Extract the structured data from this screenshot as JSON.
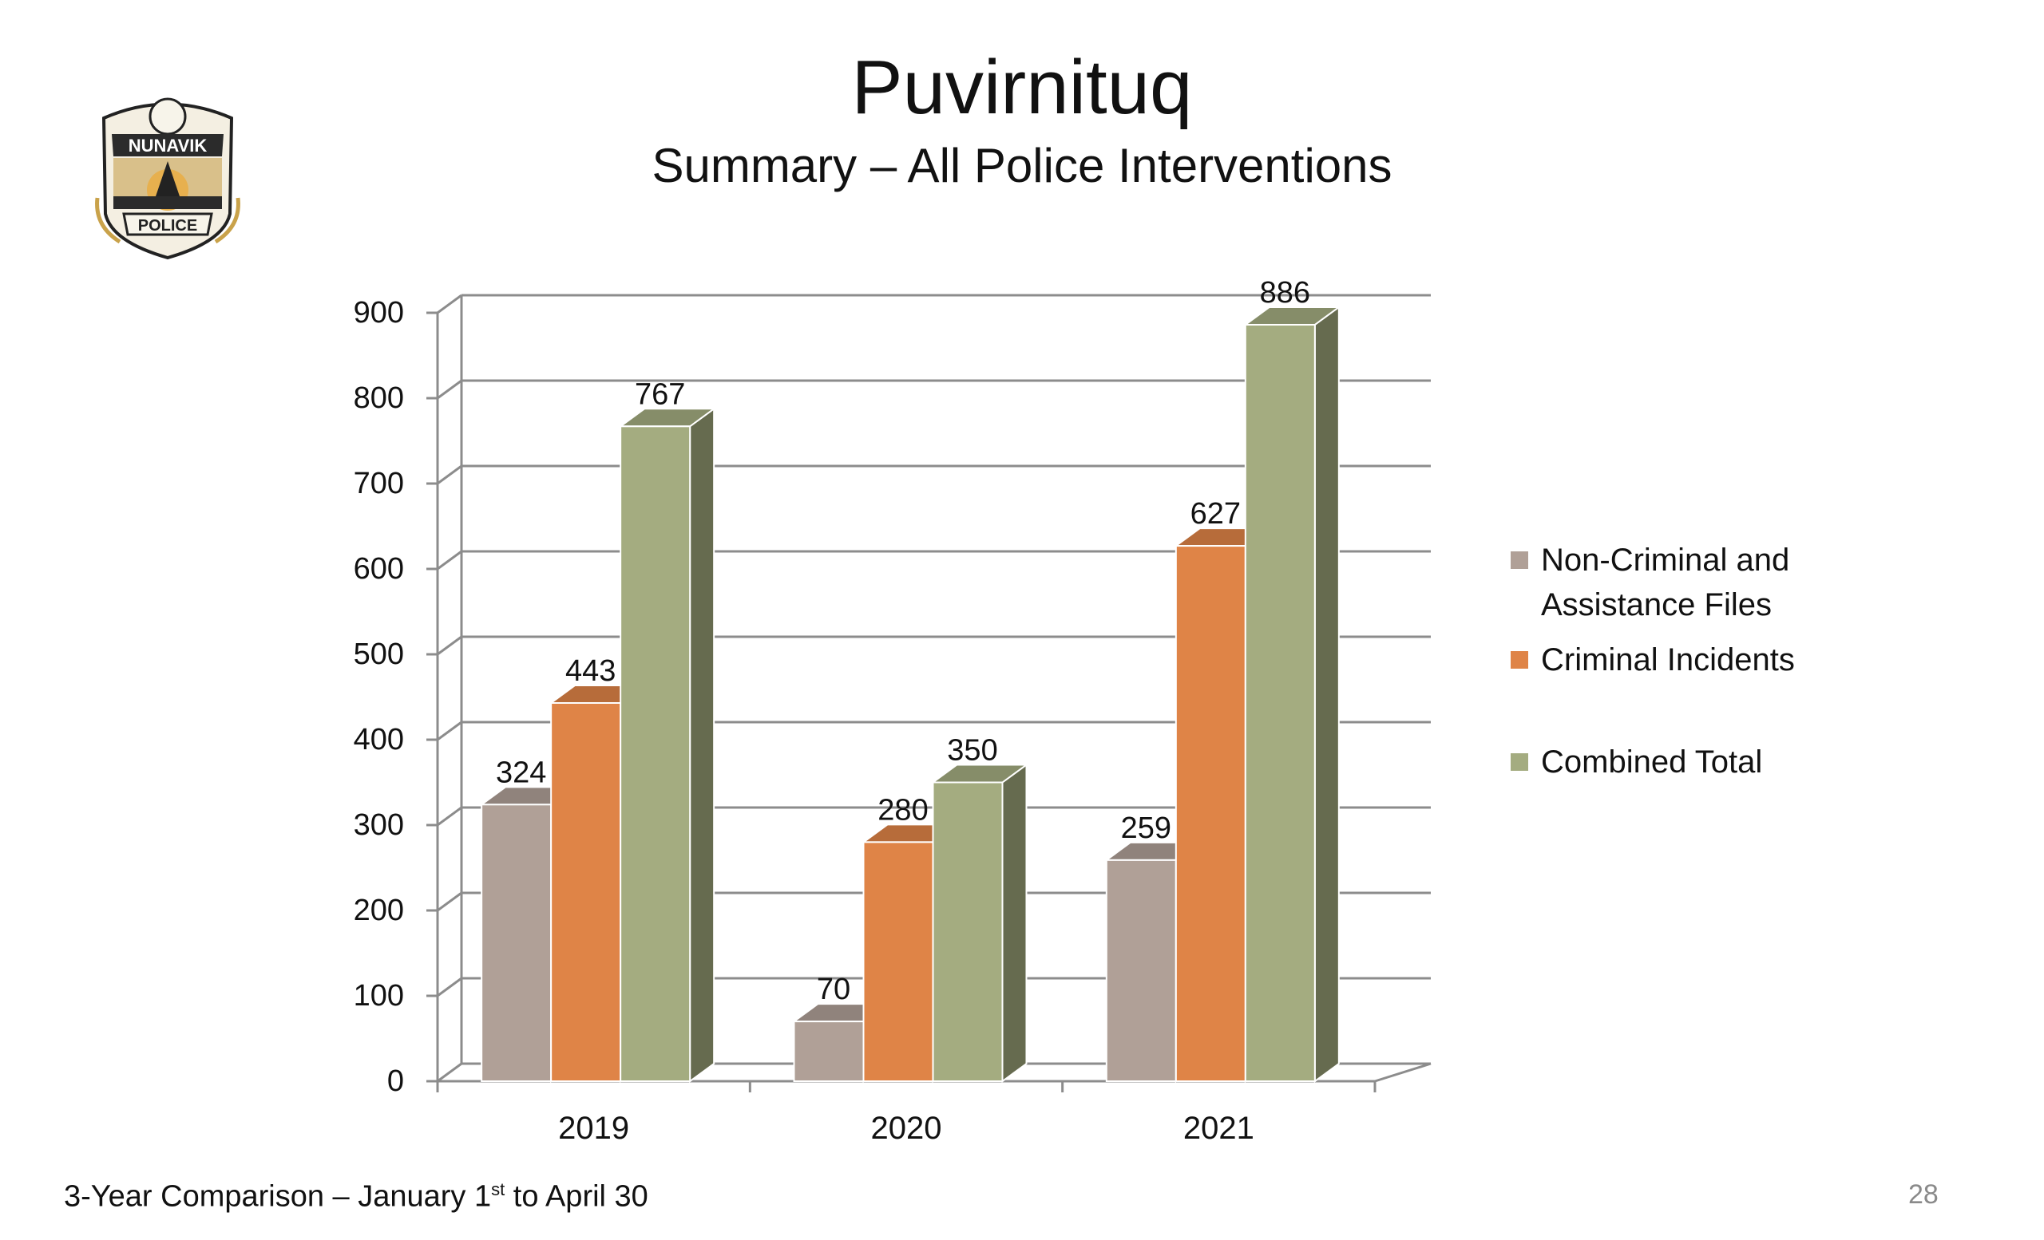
{
  "header": {
    "title": "Puvirnituq",
    "subtitle": "Summary – All Police Interventions"
  },
  "logo": {
    "top_text": "NUNAVIK",
    "bottom_text": "POLICE",
    "colors": {
      "band": "#2b2b2b",
      "gold": "#c9a24a",
      "sun": "#e7b04e"
    }
  },
  "footer": {
    "note_prefix": "3-Year Comparison – January 1",
    "note_sup": "st",
    "note_suffix": " to April 30",
    "page_number": "28"
  },
  "chart_data": {
    "type": "bar",
    "style": "3d-clustered",
    "categories": [
      "2019",
      "2020",
      "2021"
    ],
    "series": [
      {
        "name": "Non-Criminal and Assistance Files",
        "legend_lines": [
          "Non-Criminal and",
          "Assistance Files"
        ],
        "values": [
          324,
          70,
          259
        ],
        "color": "#b0a097"
      },
      {
        "name": "Criminal Incidents",
        "legend_lines": [
          "Criminal Incidents"
        ],
        "values": [
          443,
          280,
          627
        ],
        "color": "#df8447"
      },
      {
        "name": "Combined Total",
        "legend_lines": [
          "Combined Total"
        ],
        "values": [
          767,
          350,
          886
        ],
        "color": "#a4ac80"
      }
    ],
    "ylim": [
      0,
      900
    ],
    "yticks": [
      0,
      100,
      200,
      300,
      400,
      500,
      600,
      700,
      800,
      900
    ],
    "grid": true,
    "legend_position": "right"
  }
}
